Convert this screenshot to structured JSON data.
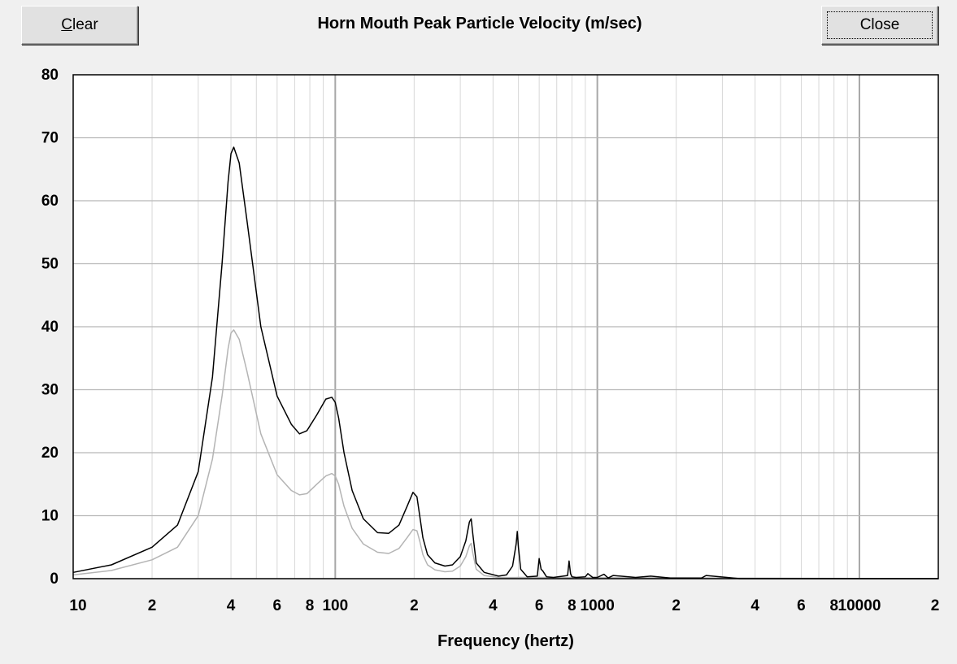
{
  "toolbar": {
    "clear_label_first": "C",
    "clear_label_rest": "lear",
    "close_label": "Close"
  },
  "chart_data": {
    "type": "line",
    "title": "Horn Mouth Peak Particle Velocity (m/sec)",
    "xlabel": "Frequency (hertz)",
    "ylabel": "",
    "x_scale": "log",
    "xlim": [
      10,
      20000
    ],
    "ylim": [
      0,
      80
    ],
    "grid": true,
    "y_ticks": [
      0,
      10,
      20,
      30,
      40,
      50,
      60,
      70,
      80
    ],
    "x_tick_labels": [
      {
        "x": 10,
        "label": "10"
      },
      {
        "x": 20,
        "label": "2"
      },
      {
        "x": 40,
        "label": "4"
      },
      {
        "x": 60,
        "label": "6"
      },
      {
        "x": 80,
        "label": "8"
      },
      {
        "x": 100,
        "label": "100"
      },
      {
        "x": 200,
        "label": "2"
      },
      {
        "x": 400,
        "label": "4"
      },
      {
        "x": 600,
        "label": "6"
      },
      {
        "x": 800,
        "label": "8"
      },
      {
        "x": 1000,
        "label": "1000"
      },
      {
        "x": 2000,
        "label": "2"
      },
      {
        "x": 4000,
        "label": "4"
      },
      {
        "x": 6000,
        "label": "6"
      },
      {
        "x": 8000,
        "label": "8"
      },
      {
        "x": 10000,
        "label": "10000"
      },
      {
        "x": 20000,
        "label": "2"
      }
    ],
    "series": [
      {
        "color": "#000000",
        "x": [
          10,
          14,
          20,
          25,
          30,
          34,
          37,
          39,
          40,
          41,
          43,
          46,
          52,
          60,
          68,
          73,
          78,
          85,
          92,
          97,
          100,
          103,
          108,
          116,
          128,
          145,
          160,
          175,
          188,
          198,
          205,
          210,
          216,
          225,
          240,
          262,
          280,
          300,
          315,
          325,
          330,
          335,
          345,
          370,
          420,
          450,
          475,
          490,
          495,
          500,
          510,
          540,
          590,
          600,
          610,
          620,
          640,
          680,
          770,
          780,
          790,
          800,
          830,
          900,
          920,
          960,
          1000,
          1060,
          1100,
          1150,
          1400,
          1600,
          1900,
          2500,
          2600,
          3500,
          20000
        ],
        "y": [
          1,
          2.2,
          5,
          8.5,
          17,
          32,
          50,
          63,
          67.5,
          68.5,
          66,
          57,
          40,
          29,
          24.5,
          23,
          23.5,
          26,
          28.5,
          28.8,
          28,
          25.5,
          20,
          14,
          9.5,
          7.3,
          7.2,
          8.5,
          11.5,
          13.7,
          13,
          10,
          6.5,
          3.8,
          2.5,
          2,
          2.2,
          3.5,
          6,
          9,
          9.5,
          7,
          2.5,
          1,
          0.4,
          0.6,
          2,
          5.5,
          7.5,
          5,
          1.5,
          0.3,
          0.4,
          3.2,
          1.5,
          1.2,
          0.3,
          0.2,
          0.5,
          2.8,
          0.8,
          0.3,
          0.2,
          0.3,
          0.8,
          0.2,
          0.2,
          0.7,
          0.1,
          0.5,
          0.2,
          0.4,
          0.1,
          0.1,
          0.5,
          0,
          0
        ]
      },
      {
        "color": "#b4b4b4",
        "x": [
          10,
          14,
          20,
          25,
          30,
          34,
          37,
          39,
          40,
          41,
          43,
          46,
          52,
          60,
          68,
          73,
          78,
          85,
          92,
          97,
          100,
          103,
          108,
          116,
          128,
          145,
          160,
          175,
          188,
          198,
          205,
          210,
          216,
          225,
          240,
          262,
          280,
          300,
          315,
          325,
          330,
          335,
          345,
          370,
          420,
          20000
        ],
        "y": [
          0.6,
          1.3,
          3,
          5,
          10,
          19,
          29,
          36.5,
          39,
          39.5,
          38,
          33,
          23,
          16.5,
          14,
          13.3,
          13.5,
          15,
          16.3,
          16.7,
          16.3,
          15,
          11.5,
          8,
          5.5,
          4.2,
          4,
          4.8,
          6.5,
          7.8,
          7.6,
          6,
          3.8,
          2.2,
          1.4,
          1.1,
          1.2,
          2,
          3.5,
          5.2,
          5.6,
          4,
          1.5,
          0.5,
          0.2,
          0
        ]
      }
    ]
  }
}
